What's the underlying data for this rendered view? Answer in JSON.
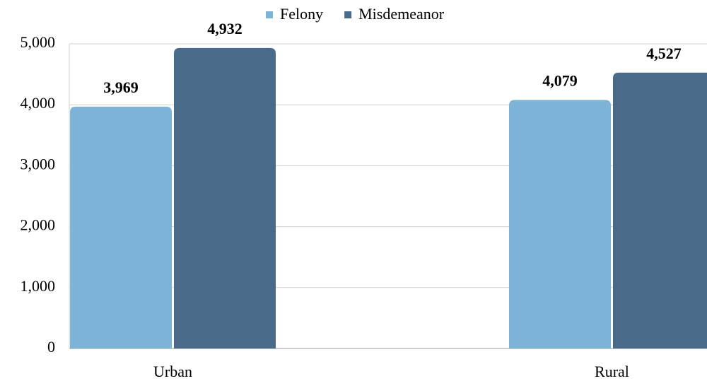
{
  "chart_data": {
    "type": "bar",
    "categories": [
      "Urban",
      "Rural"
    ],
    "series": [
      {
        "name": "Felony",
        "color": "#7eb3d8",
        "values": [
          3969,
          4079
        ],
        "value_labels": [
          "3,969",
          "4,079"
        ]
      },
      {
        "name": "Misdemeanor",
        "color": "#4a6a8a",
        "values": [
          4932,
          4527
        ],
        "value_labels": [
          "4,932",
          "4,527"
        ]
      }
    ],
    "ylim": [
      0,
      5000
    ],
    "yticks": [
      0,
      {
        "value": 1000,
        "label": "1,000"
      },
      {
        "value": 2000,
        "label": "2,000"
      },
      {
        "value": 3000,
        "label": "3,000"
      },
      {
        "value": 4000,
        "label": "4,000"
      },
      {
        "value": 5000,
        "label": "5,000"
      }
    ],
    "grid": true,
    "legend": "top"
  }
}
